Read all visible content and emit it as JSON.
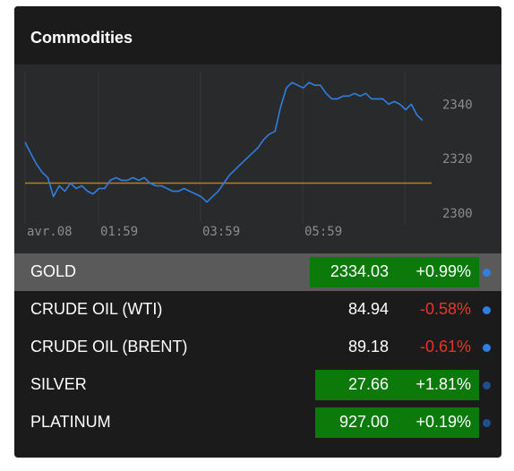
{
  "widget": {
    "title": "Commodities"
  },
  "chart_data": {
    "type": "line",
    "x_ticks": [
      "avr.08",
      "01:59",
      "03:59",
      "05:59"
    ],
    "y_ticks": [
      2340,
      2320,
      2300
    ],
    "ylim": [
      2296,
      2352
    ],
    "reference_line": 2311,
    "series": [
      {
        "values": [
          2326,
          2322,
          2318,
          2315,
          2313,
          2306,
          2310,
          2308,
          2311,
          2309,
          2310,
          2308,
          2307,
          2309,
          2309,
          2312,
          2313,
          2312,
          2312,
          2313,
          2312,
          2313,
          2311,
          2310,
          2310,
          2309,
          2308,
          2308,
          2309,
          2308,
          2307,
          2306,
          2304,
          2306,
          2308,
          2311,
          2314,
          2316,
          2318,
          2320,
          2322,
          2324,
          2327,
          2329,
          2330,
          2339,
          2346,
          2348,
          2347,
          2346,
          2348,
          2347,
          2347,
          2344,
          2342,
          2342,
          2343,
          2343,
          2344,
          2343,
          2344,
          2342,
          2342,
          2342,
          2340,
          2341,
          2340,
          2338,
          2340,
          2336,
          2334
        ]
      }
    ],
    "line_color": "#2f7fe0",
    "reference_color": "#c07a1e",
    "grid": true
  },
  "rows": [
    {
      "name": "GOLD",
      "price": "2334.03",
      "change": "+0.99%",
      "direction": "up",
      "highlight": true,
      "boxed": true
    },
    {
      "name": "CRUDE OIL (WTI)",
      "price": "84.94",
      "change": "-0.58%",
      "direction": "down",
      "highlight": false,
      "boxed": false
    },
    {
      "name": "CRUDE OIL (BRENT)",
      "price": "89.18",
      "change": "-0.61%",
      "direction": "down",
      "highlight": false,
      "boxed": false
    },
    {
      "name": "SILVER",
      "price": "27.66",
      "change": "+1.81%",
      "direction": "up",
      "highlight": false,
      "boxed": true
    },
    {
      "name": "PLATINUM",
      "price": "927.00",
      "change": "+0.19%",
      "direction": "up",
      "highlight": false,
      "boxed": true
    }
  ],
  "colors": {
    "up_box": "#0b7a0b",
    "down_text": "#e8352a",
    "dot_bright": "#2f7fe0",
    "dot_dim": "#1f4f8c"
  }
}
